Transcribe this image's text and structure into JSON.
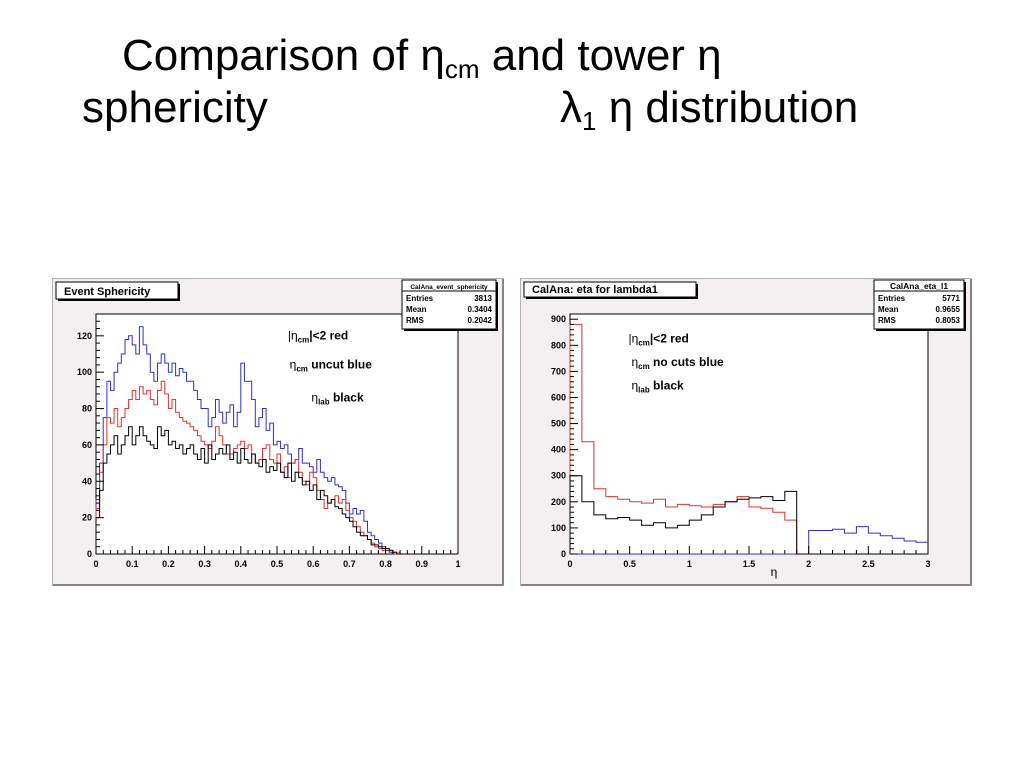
{
  "slide": {
    "title_line1": {
      "prefix": "Comparison of η",
      "sub": "cm",
      "suffix": " and tower η"
    },
    "title_line2_left": "sphericity",
    "title_line2_right": {
      "prefix": "λ",
      "sub": "1",
      "suffix": " η distribution"
    }
  },
  "chart_data": [
    {
      "type": "line",
      "title": "Event Sphericity",
      "stats": {
        "name": "CalAna_event_sphericity",
        "rows": [
          {
            "label": "Entries",
            "value": "3813"
          },
          {
            "label": "Mean",
            "value": "0.3404"
          },
          {
            "label": "RMS",
            "value": "0.2042"
          }
        ]
      },
      "xlabel": "",
      "ylabel": "",
      "xlim": [
        0,
        1
      ],
      "ylim": [
        0,
        132
      ],
      "xticks": [
        "0",
        "0.1",
        "0.2",
        "0.3",
        "0.4",
        "0.5",
        "0.6",
        "0.7",
        "0.8",
        "0.9",
        "1"
      ],
      "yticks": [
        "0",
        "20",
        "40",
        "60",
        "80",
        "100",
        "120"
      ],
      "annotations": [
        {
          "pre": "|η",
          "sub": "cm",
          "post": "|<2 red",
          "x": 0.53,
          "y": 118
        },
        {
          "pre": "η",
          "sub": "cm",
          "post": " uncut blue",
          "x": 0.535,
          "y": 102
        },
        {
          "pre": "η",
          "sub": "lab",
          "post": " black",
          "x": 0.595,
          "y": 84
        }
      ],
      "bin_width": 0.01,
      "series": [
        {
          "color": "#3030d0",
          "values": [
            30,
            50,
            75,
            95,
            90,
            100,
            105,
            110,
            118,
            120,
            115,
            110,
            125,
            115,
            110,
            100,
            95,
            105,
            110,
            105,
            100,
            105,
            98,
            102,
            100,
            95,
            95,
            90,
            85,
            80,
            80,
            70,
            75,
            85,
            78,
            72,
            78,
            82,
            70,
            78,
            105,
            95,
            95,
            85,
            70,
            75,
            80,
            68,
            72,
            60,
            62,
            58,
            60,
            55,
            50,
            52,
            58,
            50,
            50,
            48,
            45,
            52,
            45,
            42,
            40,
            42,
            38,
            37,
            35,
            28,
            22,
            25,
            22,
            24,
            18,
            12,
            10,
            8,
            6,
            4,
            2,
            1,
            0,
            0,
            0,
            0,
            0,
            0,
            0,
            0
          ]
        },
        {
          "color": "#e83030",
          "values": [
            25,
            45,
            60,
            75,
            72,
            80,
            70,
            75,
            80,
            85,
            90,
            85,
            92,
            88,
            90,
            85,
            82,
            90,
            95,
            88,
            80,
            85,
            78,
            75,
            73,
            72,
            70,
            68,
            65,
            62,
            60,
            58,
            62,
            70,
            65,
            60,
            55,
            55,
            58,
            60,
            62,
            58,
            60,
            55,
            50,
            52,
            58,
            60,
            52,
            50,
            55,
            45,
            48,
            42,
            50,
            52,
            45,
            40,
            38,
            45,
            42,
            35,
            30,
            25,
            28,
            30,
            32,
            28,
            30,
            24,
            20,
            18,
            15,
            12,
            10,
            8,
            6,
            4,
            3,
            2,
            2,
            2,
            1,
            1,
            0,
            0,
            0,
            0,
            0,
            0
          ]
        },
        {
          "color": "#000000",
          "values": [
            20,
            35,
            50,
            55,
            60,
            65,
            55,
            60,
            65,
            70,
            60,
            65,
            70,
            65,
            62,
            60,
            58,
            70,
            65,
            68,
            60,
            62,
            58,
            60,
            55,
            58,
            60,
            55,
            52,
            58,
            50,
            60,
            52,
            55,
            58,
            55,
            60,
            52,
            56,
            50,
            58,
            52,
            50,
            55,
            50,
            48,
            52,
            45,
            48,
            46,
            50,
            45,
            42,
            50,
            40,
            45,
            42,
            38,
            40,
            35,
            38,
            30,
            35,
            32,
            28,
            30,
            26,
            25,
            22,
            20,
            18,
            15,
            12,
            10,
            10,
            8,
            5,
            5,
            4,
            3,
            3,
            2,
            1,
            0,
            0,
            0,
            0,
            0,
            0,
            0
          ]
        }
      ]
    },
    {
      "type": "line",
      "title": "CalAna: eta for lambda1",
      "stats": {
        "name": "CalAna_eta_l1",
        "rows": [
          {
            "label": "Entries",
            "value": "5771"
          },
          {
            "label": "Mean",
            "value": "0.9655"
          },
          {
            "label": "RMS",
            "value": "0.8053"
          }
        ]
      },
      "xlabel": "η",
      "ylabel": "",
      "xlim": [
        0,
        3
      ],
      "ylim": [
        0,
        920
      ],
      "xticks": [
        "0",
        "0.5",
        "1",
        "1.5",
        "2",
        "2.5",
        "3"
      ],
      "yticks": [
        "0",
        "100",
        "200",
        "300",
        "400",
        "500",
        "600",
        "700",
        "800",
        "900"
      ],
      "annotations": [
        {
          "pre": "|η",
          "sub": "cm",
          "post": "|<2 red",
          "x": 0.49,
          "y": 810
        },
        {
          "pre": "η",
          "sub": "cm",
          "post": " no cuts blue",
          "x": 0.515,
          "y": 720
        },
        {
          "pre": "η",
          "sub": "lab",
          "post": " black",
          "x": 0.515,
          "y": 630
        }
      ],
      "bin_width": 0.1,
      "series": [
        {
          "color": "#3030d0",
          "values": [
            0,
            0,
            0,
            0,
            0,
            0,
            0,
            0,
            0,
            0,
            0,
            0,
            0,
            0,
            0,
            0,
            0,
            0,
            0,
            0,
            90,
            90,
            95,
            80,
            105,
            80,
            70,
            60,
            50,
            45
          ]
        },
        {
          "color": "#e83030",
          "values": [
            880,
            430,
            250,
            220,
            210,
            200,
            195,
            210,
            180,
            190,
            185,
            180,
            190,
            200,
            220,
            180,
            175,
            160,
            130,
            0,
            0,
            0,
            0,
            0,
            0,
            0,
            0,
            0,
            0,
            0
          ]
        },
        {
          "color": "#000000",
          "values": [
            300,
            200,
            150,
            135,
            140,
            130,
            110,
            120,
            100,
            110,
            130,
            150,
            180,
            200,
            210,
            215,
            220,
            205,
            240,
            0,
            0,
            0,
            0,
            0,
            0,
            0,
            0,
            0,
            0,
            0
          ]
        }
      ]
    }
  ]
}
